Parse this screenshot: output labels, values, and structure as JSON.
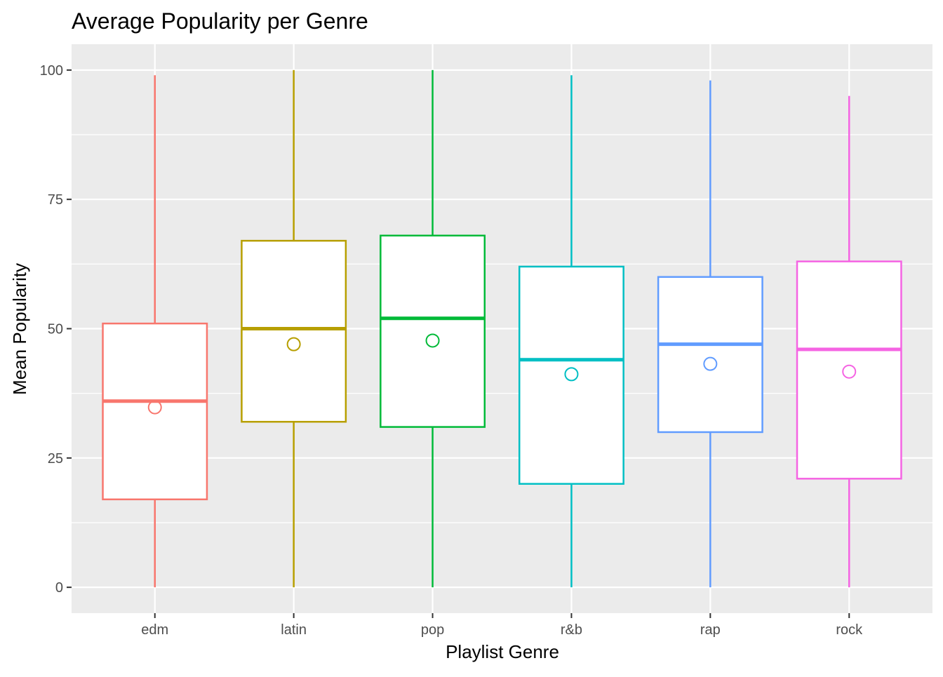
{
  "chart_data": {
    "type": "box",
    "title": "Average Popularity per Genre",
    "xlabel": "Playlist Genre",
    "ylabel": "Mean Popularity",
    "ylim": [
      -5,
      105
    ],
    "yticks": [
      0,
      25,
      50,
      75,
      100
    ],
    "grid": true,
    "legend": "none",
    "categories": [
      "edm",
      "latin",
      "pop",
      "r&b",
      "rap",
      "rock"
    ],
    "boxes": [
      {
        "category": "edm",
        "color": "#F8766D",
        "min": 0,
        "q1": 17,
        "median": 36,
        "q3": 51,
        "max": 99,
        "mean": 34.8
      },
      {
        "category": "latin",
        "color": "#B79F00",
        "min": 0,
        "q1": 32,
        "median": 50,
        "q3": 67,
        "max": 100,
        "mean": 47.0
      },
      {
        "category": "pop",
        "color": "#00BA38",
        "min": 0,
        "q1": 31,
        "median": 52,
        "q3": 68,
        "max": 100,
        "mean": 47.7
      },
      {
        "category": "r&b",
        "color": "#00BFC4",
        "min": 0,
        "q1": 20,
        "median": 44,
        "q3": 62,
        "max": 99,
        "mean": 41.2
      },
      {
        "category": "rap",
        "color": "#619CFF",
        "min": 0,
        "q1": 30,
        "median": 47,
        "q3": 60,
        "max": 98,
        "mean": 43.2
      },
      {
        "category": "rock",
        "color": "#F564E3",
        "min": 0,
        "q1": 21,
        "median": 46,
        "q3": 63,
        "max": 95,
        "mean": 41.7
      }
    ]
  }
}
